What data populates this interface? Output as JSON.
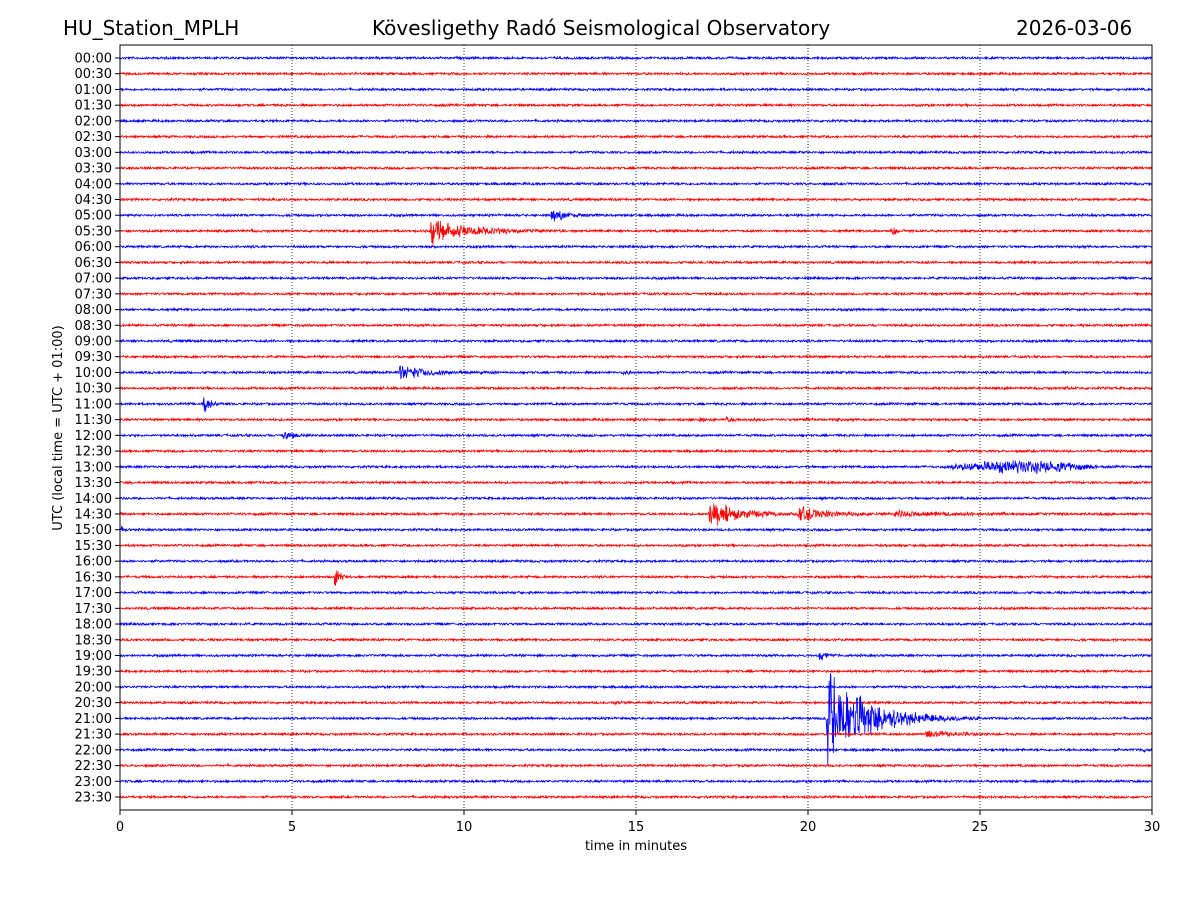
{
  "header": {
    "station": "HU_Station_MPLH",
    "title": "Kövesligethy Radó Seismological Observatory",
    "date": "2026-03-06"
  },
  "chart_data": {
    "type": "line",
    "subtype": "helicorder",
    "xlabel": "time in minutes",
    "ylabel": "UTC (local time = UTC + 01:00)",
    "xlim": [
      0,
      30
    ],
    "x_ticks": [
      0,
      5,
      10,
      15,
      20,
      25,
      30
    ],
    "grid": "vertical dotted at x ticks",
    "row_labels": [
      "00:00",
      "00:30",
      "01:00",
      "01:30",
      "02:00",
      "02:30",
      "03:00",
      "03:30",
      "04:00",
      "04:30",
      "05:00",
      "05:30",
      "06:00",
      "06:30",
      "07:00",
      "07:30",
      "08:00",
      "08:30",
      "09:00",
      "09:30",
      "10:00",
      "10:30",
      "11:00",
      "11:30",
      "12:00",
      "12:30",
      "13:00",
      "13:30",
      "14:00",
      "14:30",
      "15:00",
      "15:30",
      "16:00",
      "16:30",
      "17:00",
      "17:30",
      "18:00",
      "18:30",
      "19:00",
      "19:30",
      "20:00",
      "20:30",
      "21:00",
      "21:30",
      "22:00",
      "22:30",
      "23:00",
      "23:30"
    ],
    "row_colors": [
      "#0000ff",
      "#ff0000"
    ],
    "events": [
      {
        "row": "04:30",
        "start_min": 3.0,
        "duration_min": 0.3,
        "relative_amplitude": 3
      },
      {
        "row": "05:00",
        "start_min": 12.5,
        "duration_min": 1.5,
        "relative_amplitude": 7
      },
      {
        "row": "05:30",
        "start_min": 3.8,
        "duration_min": 0.2,
        "relative_amplitude": 3
      },
      {
        "row": "05:30",
        "start_min": 9.0,
        "duration_min": 4.0,
        "relative_amplitude": 12
      },
      {
        "row": "05:30",
        "start_min": 22.4,
        "duration_min": 0.6,
        "relative_amplitude": 5
      },
      {
        "row": "10:00",
        "start_min": 8.1,
        "duration_min": 3.0,
        "relative_amplitude": 7
      },
      {
        "row": "10:00",
        "start_min": 14.6,
        "duration_min": 0.6,
        "relative_amplitude": 3
      },
      {
        "row": "10:30",
        "start_min": 7.6,
        "duration_min": 0.2,
        "relative_amplitude": 2
      },
      {
        "row": "10:30",
        "start_min": 27.5,
        "duration_min": 0.3,
        "relative_amplitude": 3
      },
      {
        "row": "11:00",
        "start_min": 2.4,
        "duration_min": 0.6,
        "relative_amplitude": 12
      },
      {
        "row": "11:30",
        "start_min": 14.9,
        "duration_min": 0.3,
        "relative_amplitude": 4
      },
      {
        "row": "11:30",
        "start_min": 16.2,
        "duration_min": 0.3,
        "relative_amplitude": 2
      },
      {
        "row": "11:30",
        "start_min": 16.8,
        "duration_min": 0.5,
        "relative_amplitude": 5
      },
      {
        "row": "11:30",
        "start_min": 17.6,
        "duration_min": 0.5,
        "relative_amplitude": 5
      },
      {
        "row": "11:30",
        "start_min": 18.4,
        "duration_min": 0.4,
        "relative_amplitude": 3
      },
      {
        "row": "11:30",
        "start_min": 19.9,
        "duration_min": 0.3,
        "relative_amplitude": 3
      },
      {
        "row": "11:30",
        "start_min": 20.8,
        "duration_min": 0.3,
        "relative_amplitude": 3
      },
      {
        "row": "12:00",
        "start_min": 4.7,
        "duration_min": 1.0,
        "relative_amplitude": 5
      },
      {
        "row": "13:00",
        "start_min": 23.8,
        "duration_min": 4.8,
        "relative_amplitude": 5,
        "emergent": true
      },
      {
        "row": "14:30",
        "start_min": 17.1,
        "duration_min": 3.0,
        "relative_amplitude": 13
      },
      {
        "row": "14:30",
        "start_min": 19.7,
        "duration_min": 3.0,
        "relative_amplitude": 7
      },
      {
        "row": "14:30",
        "start_min": 22.5,
        "duration_min": 7.5,
        "relative_amplitude": 2
      },
      {
        "row": "15:00",
        "start_min": 0.0,
        "duration_min": 0.3,
        "relative_amplitude": 4
      },
      {
        "row": "16:30",
        "start_min": 6.2,
        "duration_min": 0.5,
        "relative_amplitude": 16
      },
      {
        "row": "19:00",
        "start_min": 20.3,
        "duration_min": 0.6,
        "relative_amplitude": 9
      },
      {
        "row": "20:30",
        "start_min": 14.3,
        "duration_min": 0.4,
        "relative_amplitude": 4
      },
      {
        "row": "21:00",
        "start_min": 20.5,
        "duration_min": 4.5,
        "relative_amplitude": 45
      },
      {
        "row": "21:30",
        "start_min": 23.4,
        "duration_min": 2.6,
        "relative_amplitude": 4
      },
      {
        "row": "22:00",
        "start_min": 29.7,
        "duration_min": 0.3,
        "relative_amplitude": 3
      }
    ]
  }
}
